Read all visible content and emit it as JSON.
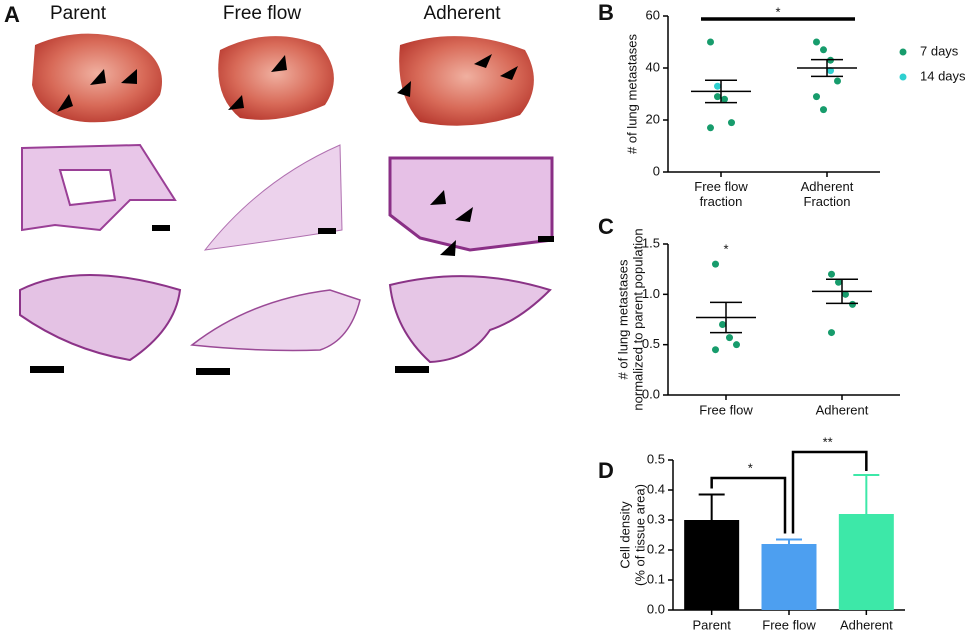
{
  "panel_a": {
    "letter": "A",
    "columns": [
      "Parent",
      "Free flow",
      "Adherent"
    ]
  },
  "chart_data": [
    {
      "type": "strip",
      "panel": "B",
      "ylabel": "# of lung metastases",
      "categories": [
        "Free flow\nfraction",
        "Adherent\nFraction"
      ],
      "series": [
        {
          "name": "7 days",
          "color": "#179c6c",
          "values": [
            [
              50,
              29,
              28,
              19,
              17
            ],
            [
              50,
              47,
              43,
              35,
              29,
              24
            ]
          ]
        },
        {
          "name": "14 days",
          "color": "#2fd0d0",
          "values": [
            [
              33
            ],
            [
              39
            ]
          ]
        }
      ],
      "means": [
        31,
        40
      ],
      "errors": [
        4.3,
        3.2
      ],
      "ylim": [
        0,
        60
      ],
      "yticks": [
        0,
        20,
        40,
        60
      ],
      "annotations": [
        "*"
      ]
    },
    {
      "type": "strip",
      "panel": "C",
      "ylabel": "# of lung metastases\nnormalized to parent population",
      "categories": [
        "Free flow",
        "Adherent"
      ],
      "values": [
        [
          1.3,
          0.7,
          0.57,
          0.5,
          0.45
        ],
        [
          1.2,
          1.12,
          1.0,
          0.9,
          0.62
        ]
      ],
      "color": "#179c6c",
      "means": [
        0.77,
        1.03
      ],
      "errors": [
        0.15,
        0.12
      ],
      "ylim": [
        0,
        1.5
      ],
      "yticks": [
        {
          "value": 0,
          "label": "0.0"
        },
        0.5,
        {
          "value": 1,
          "label": "1.0"
        },
        1.5
      ],
      "annotations": [
        "*"
      ]
    },
    {
      "type": "bar",
      "panel": "D",
      "ylabel": "Cell density\n(% of tissue area)",
      "categories": [
        "Parent",
        "Free flow",
        "Adherent"
      ],
      "values": [
        0.3,
        0.22,
        0.32
      ],
      "errors": [
        0.085,
        0.015,
        0.13
      ],
      "colors": [
        "#000000",
        "#4d9ff0",
        "#3de8a8"
      ],
      "ylim": [
        0,
        0.5
      ],
      "yticks": [
        {
          "value": 0,
          "label": "0.0"
        },
        0.1,
        0.2,
        0.3,
        0.4,
        0.5
      ],
      "annotations": [
        "*",
        "**"
      ]
    }
  ]
}
